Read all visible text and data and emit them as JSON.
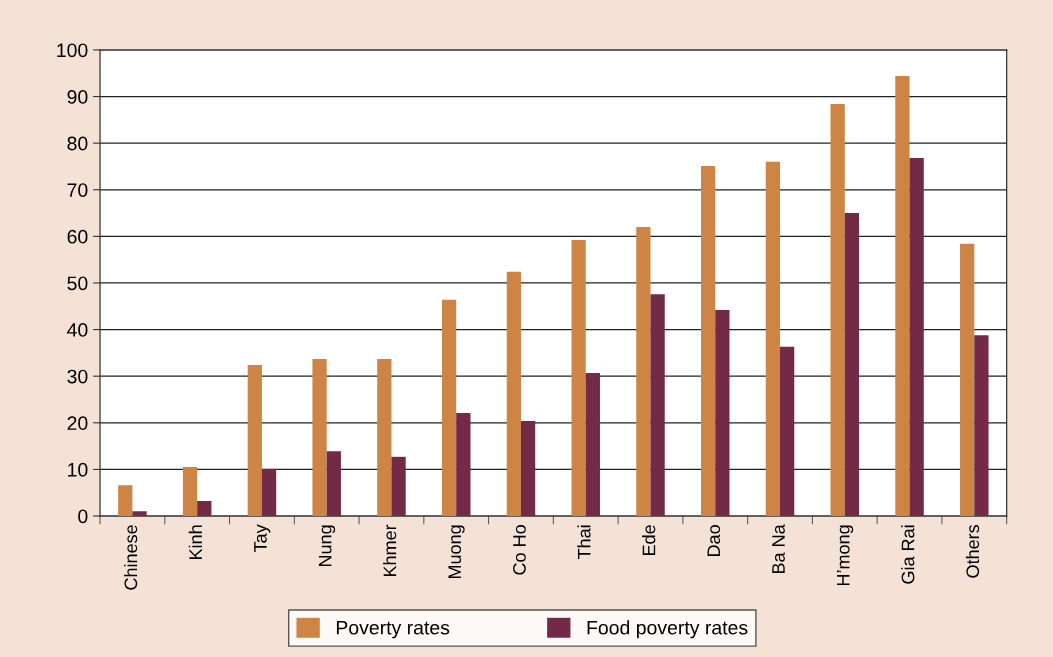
{
  "chart_data": {
    "type": "bar",
    "categories": [
      "Chinese",
      "Kinh",
      "Tay",
      "Nung",
      "Khmer",
      "Muong",
      "Co Ho",
      "Thai",
      "Ede",
      "Dao",
      "Ba Na",
      "H’mong",
      "Gia Rai",
      "Others"
    ],
    "series": [
      {
        "name": "Poverty rates",
        "color": "#cd8445",
        "values": [
          6.6,
          10.5,
          32.4,
          33.7,
          33.7,
          46.4,
          52.4,
          59.2,
          62.0,
          75.1,
          76.0,
          88.4,
          94.4,
          58.4
        ]
      },
      {
        "name": "Food poverty rates",
        "color": "#722a47",
        "values": [
          1.0,
          3.2,
          10.1,
          13.9,
          12.7,
          22.1,
          20.4,
          30.7,
          47.6,
          44.2,
          36.3,
          65.0,
          76.8,
          38.8
        ]
      }
    ],
    "ylim": [
      0,
      100
    ],
    "yticks": [
      0,
      10,
      20,
      30,
      40,
      50,
      60,
      70,
      80,
      90,
      100
    ],
    "grid": "y",
    "legend": "bottom"
  }
}
